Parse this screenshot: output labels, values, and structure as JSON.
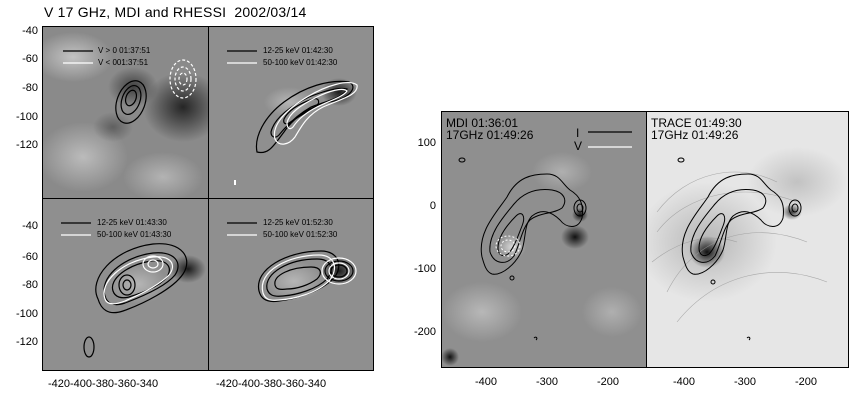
{
  "title": "V 17 GHz, MDI and RHESSI  2002/03/14",
  "left_grid": {
    "panels": [
      {
        "legend_black": "V > 0 01:37:51",
        "legend_white": "V < 001:37:51"
      },
      {
        "legend_black": "12-25 keV 01:42:30",
        "legend_white": "50-100 keV 01:42:30"
      },
      {
        "legend_black": "12-25 keV 01:43:30",
        "legend_white": "50-100 keV 01:43:30"
      },
      {
        "legend_black": "12-25 keV 01:52:30",
        "legend_white": "50-100 keV 01:52:30"
      }
    ],
    "y_ticks_top": [
      "-40",
      "-60",
      "-80",
      "-100",
      "-120"
    ],
    "y_ticks_bottom": [
      "-40",
      "-60",
      "-80",
      "-100",
      "-120"
    ],
    "x_ticks_left": "-420-400-380-360-340",
    "x_ticks_right": "-420-400-380-360-340"
  },
  "right_pair": {
    "left_panel": {
      "line1": "MDI 01:36:01",
      "line2": "17GHz 01:49:26",
      "key_i": "I",
      "key_v": "V"
    },
    "right_panel": {
      "line1": "TRACE 01:49:30",
      "line2": "17GHz 01:49:26"
    },
    "y_ticks": [
      "100",
      "0",
      "-100",
      "-200"
    ],
    "x_ticks_left": [
      "-400",
      "-300",
      "-200"
    ],
    "x_ticks_right": [
      "-400",
      "-300",
      "-200"
    ]
  },
  "colors": {
    "contour_black": "#000000",
    "contour_white": "#ffffff",
    "mdi_grey": "#8f8f8f",
    "trace_light": "#e6e6e6"
  }
}
